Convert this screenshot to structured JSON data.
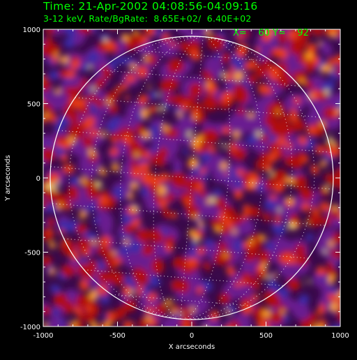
{
  "header": {
    "title": "Time: 21-Apr-2002 04:08:56-04:09:16",
    "subtitle": "3-12 keV, Rate/BgRate:  8.65E+02/  6.40E+02",
    "cursor_readout": "X=    60 Y=    92"
  },
  "axes": {
    "xlabel": "X arcseconds",
    "ylabel": "Y arcseconds",
    "xrange": [
      -1000,
      1000
    ],
    "yrange": [
      -1000,
      1000
    ],
    "xticks": [
      "-1000",
      "-500",
      "0",
      "500",
      "1000"
    ],
    "yticks": [
      "-1000",
      "-500",
      "0",
      "500",
      "1000"
    ]
  },
  "image": {
    "colormap": "red-temperature",
    "solar_limb_radius_arcsec": 955,
    "grid": "heliographic dotted lines"
  },
  "colors": {
    "header_text": "#00ff00",
    "axes": "#ffffff",
    "background": "#000000"
  }
}
